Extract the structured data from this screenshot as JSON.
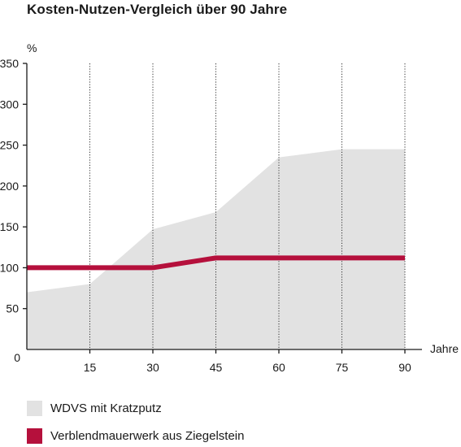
{
  "chart_data": {
    "type": "area",
    "title": "Kosten-Nutzen-Vergleich über 90 Jahre",
    "ylabel": "%",
    "xlabel": "Jahre",
    "x": [
      0,
      15,
      30,
      45,
      60,
      75,
      90
    ],
    "xticks": [
      15,
      30,
      45,
      60,
      75,
      90
    ],
    "yticks": [
      0,
      50,
      100,
      150,
      200,
      250,
      300,
      350
    ],
    "xlim": [
      0,
      90
    ],
    "ylim": [
      0,
      350
    ],
    "grid": "vertical dotted",
    "legend_position": "bottom-left",
    "series": [
      {
        "name": "WDVS mit Kratzputz",
        "kind": "area",
        "color": "#e2e2e2",
        "values": [
          70,
          80,
          147,
          168,
          235,
          245,
          245
        ]
      },
      {
        "name": "Verblendmauerwerk aus Ziegelstein",
        "kind": "line",
        "color": "#b5103c",
        "values": [
          100,
          100,
          100,
          112,
          112,
          112,
          112
        ]
      }
    ]
  }
}
